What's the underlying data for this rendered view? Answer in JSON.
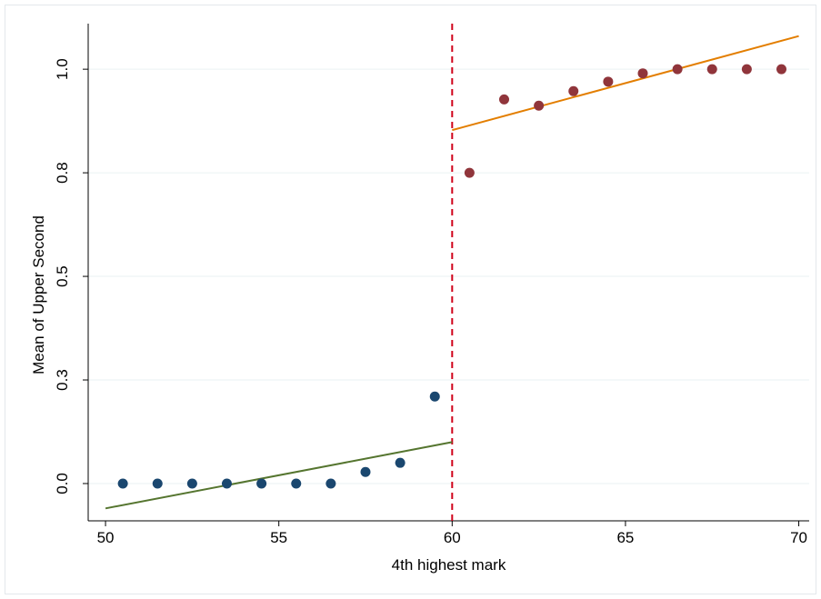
{
  "chart_data": {
    "type": "scatter",
    "title": "",
    "xlabel": "4th highest mark",
    "ylabel": "Mean of Upper Second",
    "xlim": [
      49.5,
      70.3
    ],
    "ylim": [
      -0.09,
      1.11
    ],
    "x_ticks": [
      50,
      55,
      60,
      65,
      70
    ],
    "x_tick_labels": [
      "50",
      "55",
      "60",
      "65",
      "70"
    ],
    "y_ticks": [
      0.0,
      0.25,
      0.5,
      0.75,
      1.0
    ],
    "y_tick_labels": [
      "0.0",
      "0.3",
      "0.5",
      "0.8",
      "1.0"
    ],
    "grid": true,
    "cutoff": 60,
    "series": [
      {
        "color": "#1a476f",
        "x": [
          50.5,
          51.5,
          52.5,
          53.5,
          54.5,
          55.5,
          56.5,
          57.5,
          58.5,
          59.5
        ],
        "y": [
          0.0,
          0.0,
          0.0,
          0.0,
          0.0,
          0.0,
          0.0,
          0.028,
          0.05,
          0.21
        ]
      },
      {
        "color": "#90353b",
        "x": [
          60.5,
          61.5,
          62.5,
          63.5,
          64.5,
          65.5,
          66.5,
          67.5,
          68.5,
          69.5
        ],
        "y": [
          0.75,
          0.927,
          0.912,
          0.947,
          0.97,
          0.99,
          1.0,
          1.0,
          1.0,
          1.0
        ]
      }
    ],
    "fit_lines": [
      {
        "color": "#55752f",
        "x": [
          50,
          60
        ],
        "y": [
          -0.06,
          0.1
        ]
      },
      {
        "color": "#e37e00",
        "x": [
          60,
          70
        ],
        "y": [
          0.853,
          1.08
        ]
      }
    ],
    "cutoff_color": "#d0021b"
  }
}
